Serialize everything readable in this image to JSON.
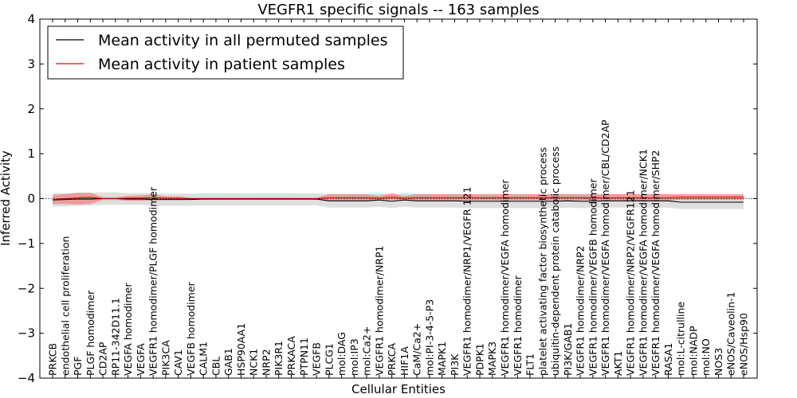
{
  "chart_data": {
    "type": "line",
    "title": "VEGFR1 specific signals -- 163 samples",
    "xlabel": "Cellular Entities",
    "ylabel": "Inferred Activity",
    "ylim": [
      -4,
      4
    ],
    "yticks": [
      -4,
      -3,
      -2,
      -1,
      0,
      1,
      2,
      3,
      4
    ],
    "ytick_labels": [
      "−4",
      "−3",
      "−2",
      "−1",
      "0",
      "1",
      "2",
      "3",
      "4"
    ],
    "grid": false,
    "legend": {
      "placement": "top-left",
      "entries": [
        {
          "label": "Mean activity in all permuted samples",
          "color": "#000000"
        },
        {
          "label": "Mean activity in patient samples",
          "color": "#ff0000"
        }
      ]
    },
    "categories": [
      "PRKCB",
      "endothelial cell proliferation",
      "PGF",
      "PLGF homodimer",
      "CD2AP",
      "RP11-342D11.1",
      "VEGFA homodimer",
      "VEGFA",
      "VEGFR1 homodimer/PLGF homodimer",
      "PIK3CA",
      "CAV1",
      "VEGFB homodimer",
      "CALM1",
      "CBL",
      "GAB1",
      "HSP90AA1",
      "NCK1",
      "NRP2",
      "PIK3R1",
      "PRKACA",
      "PTPN11",
      "VEGFB",
      "PLCG1",
      "mol:DAG",
      "mol:IP3",
      "mol:Ca2+",
      "VEGFR1 homodimer/NRP1",
      "PRKCA",
      "HIF1A",
      "CaM/Ca2+",
      "mol:PI-3-4-5-P3",
      "MAPK1",
      "PI3K",
      "VEGFR1 homodimer/NRP1/VEGFR 121",
      "PDPK1",
      "MAPK3",
      "VEGFR1 homodimer/VEGFA homodimer",
      "VEGFR1 homodimer",
      "FLT1",
      "platelet activating factor biosynthetic process",
      "ubiquitin-dependent protein catabolic process",
      "PI3K/GAB1",
      "VEGFR1 homodimer/NRP2",
      "VEGFR1 homodimer/VEGFB homodimer",
      "VEGFR1 homodimer/VEGFA homodimer/CBL/CD2AP",
      "AKT1",
      "VEGFR1 homodimer/NRP2/VEGFR121",
      "VEGFR1 homodimer/VEGFA homodimer/NCK1",
      "VEGFR1 homodimer/VEGFA homodimer/SHP2",
      "RASA1",
      "mol:L-citrulline",
      "mol:NADP",
      "mol:NO",
      "NOS3",
      "eNOS/Caveolin-1",
      "eNOS/Hsp90"
    ],
    "series": [
      {
        "name": "Mean activity in all permuted samples",
        "color": "#000000",
        "values": [
          -0.03,
          -0.02,
          -0.01,
          -0.01,
          0.0,
          0.0,
          -0.01,
          -0.01,
          -0.02,
          -0.02,
          -0.02,
          -0.02,
          -0.01,
          -0.01,
          -0.01,
          -0.01,
          -0.01,
          -0.01,
          -0.01,
          -0.01,
          -0.01,
          -0.01,
          -0.05,
          -0.05,
          -0.05,
          -0.05,
          -0.03,
          -0.06,
          -0.03,
          -0.05,
          -0.05,
          -0.05,
          -0.05,
          -0.06,
          -0.06,
          -0.06,
          -0.06,
          -0.06,
          -0.06,
          -0.06,
          -0.06,
          -0.05,
          -0.06,
          -0.06,
          -0.05,
          -0.05,
          -0.05,
          -0.05,
          -0.05,
          -0.05,
          -0.08,
          -0.08,
          -0.08,
          -0.08,
          -0.08,
          -0.08
        ],
        "lower": [
          -0.18,
          -0.17,
          -0.16,
          -0.15,
          -0.14,
          -0.14,
          -0.14,
          -0.14,
          -0.16,
          -0.16,
          -0.16,
          -0.16,
          -0.15,
          -0.15,
          -0.15,
          -0.15,
          -0.15,
          -0.15,
          -0.15,
          -0.15,
          -0.15,
          -0.15,
          -0.2,
          -0.2,
          -0.2,
          -0.2,
          -0.18,
          -0.21,
          -0.18,
          -0.2,
          -0.2,
          -0.2,
          -0.2,
          -0.21,
          -0.21,
          -0.21,
          -0.21,
          -0.21,
          -0.21,
          -0.21,
          -0.21,
          -0.2,
          -0.21,
          -0.21,
          -0.2,
          -0.2,
          -0.2,
          -0.2,
          -0.2,
          -0.2,
          -0.23,
          -0.23,
          -0.23,
          -0.23,
          -0.23,
          -0.23
        ],
        "upper": [
          0.12,
          0.12,
          0.13,
          0.13,
          0.14,
          0.14,
          0.12,
          0.12,
          0.11,
          0.11,
          0.11,
          0.11,
          0.12,
          0.12,
          0.12,
          0.12,
          0.12,
          0.12,
          0.12,
          0.12,
          0.12,
          0.12,
          0.1,
          0.1,
          0.1,
          0.1,
          0.12,
          0.09,
          0.12,
          0.1,
          0.1,
          0.1,
          0.1,
          0.09,
          0.09,
          0.09,
          0.09,
          0.09,
          0.09,
          0.09,
          0.09,
          0.1,
          0.09,
          0.09,
          0.1,
          0.1,
          0.1,
          0.1,
          0.1,
          0.1,
          0.07,
          0.07,
          0.07,
          0.07,
          0.07,
          0.07
        ]
      },
      {
        "name": "Mean activity in patient samples",
        "color": "#ff0000",
        "values": [
          -0.02,
          0.0,
          0.02,
          0.03,
          0.0,
          0.0,
          0.01,
          0.01,
          0.02,
          0.01,
          0.01,
          0.0,
          0.0,
          0.0,
          0.0,
          0.0,
          0.0,
          0.0,
          0.0,
          0.0,
          0.0,
          0.0,
          0.02,
          0.02,
          0.02,
          0.02,
          0.01,
          0.03,
          0.01,
          0.02,
          0.02,
          0.02,
          0.02,
          0.02,
          0.02,
          0.02,
          0.02,
          0.02,
          0.02,
          0.02,
          0.02,
          0.02,
          0.02,
          0.02,
          0.02,
          0.02,
          0.02,
          0.02,
          0.02,
          0.02,
          0.03,
          0.03,
          0.03,
          0.03,
          0.03,
          0.03
        ],
        "lower": [
          -0.12,
          -0.12,
          -0.13,
          -0.12,
          -0.03,
          -0.03,
          -0.05,
          -0.05,
          -0.04,
          -0.03,
          -0.03,
          -0.02,
          -0.02,
          -0.02,
          -0.02,
          -0.02,
          -0.02,
          -0.02,
          -0.02,
          -0.02,
          -0.02,
          -0.02,
          -0.04,
          -0.04,
          -0.04,
          -0.04,
          -0.03,
          -0.03,
          -0.03,
          -0.04,
          -0.04,
          -0.04,
          -0.04,
          -0.04,
          -0.04,
          -0.04,
          -0.04,
          -0.04,
          -0.04,
          -0.04,
          -0.04,
          -0.04,
          -0.04,
          -0.04,
          -0.04,
          -0.04,
          -0.04,
          -0.04,
          -0.04,
          -0.04,
          -0.03,
          -0.03,
          -0.03,
          -0.03,
          -0.03,
          -0.03
        ],
        "upper": [
          0.08,
          0.1,
          0.13,
          0.13,
          0.03,
          0.03,
          0.06,
          0.07,
          0.1,
          0.05,
          0.05,
          0.02,
          0.02,
          0.02,
          0.02,
          0.02,
          0.02,
          0.02,
          0.02,
          0.02,
          0.02,
          0.02,
          0.1,
          0.1,
          0.1,
          0.1,
          0.06,
          0.12,
          0.06,
          0.1,
          0.1,
          0.1,
          0.1,
          0.1,
          0.1,
          0.1,
          0.1,
          0.1,
          0.1,
          0.1,
          0.1,
          0.1,
          0.1,
          0.1,
          0.1,
          0.1,
          0.1,
          0.1,
          0.1,
          0.1,
          0.1,
          0.1,
          0.1,
          0.1,
          0.1,
          0.1
        ]
      }
    ]
  }
}
